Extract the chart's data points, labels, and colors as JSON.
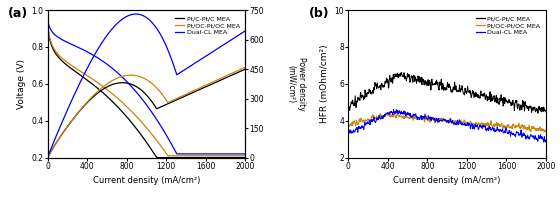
{
  "panel_a": {
    "title": "(a)",
    "xlabel": "Current density (mA/cm²)",
    "ylabel_left": "Voltage (V)",
    "ylabel_right": "Power density\n(mW/cm²)",
    "xlim": [
      0,
      2000
    ],
    "ylim_left": [
      0.2,
      1.0
    ],
    "ylim_right": [
      0,
      750
    ],
    "xticks": [
      0,
      400,
      800,
      1200,
      1600,
      2000
    ],
    "yticks_left": [
      0.2,
      0.4,
      0.6,
      0.8,
      1.0
    ],
    "yticks_right": [
      0,
      150,
      300,
      450,
      600,
      750
    ],
    "legend": [
      "Pt/C-Pt/C MEA",
      "Pt/OC-Pt/OC MEA",
      "Dual-CL MEA"
    ],
    "colors": [
      "black",
      "#C8860A",
      "blue"
    ]
  },
  "panel_b": {
    "title": "(b)",
    "xlabel": "Current density (mA/cm²)",
    "ylabel": "HFR (mOhm/cm²)",
    "xlim": [
      0,
      2000
    ],
    "ylim": [
      2,
      10
    ],
    "xticks": [
      0,
      400,
      800,
      1200,
      1600,
      2000
    ],
    "yticks": [
      2,
      4,
      6,
      8,
      10
    ],
    "legend": [
      "Pt/C-Pt/C MEA",
      "Pt/OC-Pt/OC MEA",
      "Dual-CL MEA"
    ],
    "colors": [
      "black",
      "#C8860A",
      "blue"
    ]
  },
  "fig_background": "white"
}
